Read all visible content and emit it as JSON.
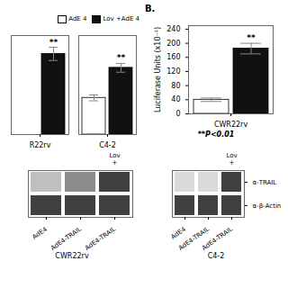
{
  "chart_data": [
    {
      "type": "bar",
      "categories": [
        "R22rv",
        "C4-2"
      ],
      "series": [
        {
          "name": "AdE 4",
          "color": "#ffffff",
          "values": [
            null,
            100
          ],
          "errors": [
            null,
            8
          ]
        },
        {
          "name": "Lov +AdE 4",
          "color": "#111111",
          "values": [
            220,
            182
          ],
          "errors": [
            18,
            12
          ]
        }
      ],
      "ylim": [
        0,
        270
      ],
      "tick_labels": "x",
      "legend": "upper right",
      "annotations": [
        {
          "text": "**",
          "category": "R22rv",
          "series": 1
        },
        {
          "text": "**",
          "category": "C4-2",
          "series": 1
        }
      ]
    },
    {
      "type": "bar",
      "title": "B.",
      "categories": [
        "CWR22rv"
      ],
      "series": [
        {
          "color": "#ffffff",
          "values": [
            40
          ],
          "errors": [
            5
          ]
        },
        {
          "color": "#111111",
          "values": [
            185
          ],
          "errors": [
            15
          ]
        }
      ],
      "ylim": [
        0,
        250
      ],
      "yticks": [
        0,
        40,
        80,
        120,
        160,
        200,
        240
      ],
      "ylabel": "Luciferase Units (x10⁻¹)",
      "annotations": [
        {
          "text": "**",
          "category": "CWR22rv",
          "series": 1
        },
        {
          "text": "**P<0.01"
        }
      ]
    },
    {
      "type": "heatmap",
      "title": "CWR22rv",
      "categories": [
        "AdE4",
        "AdE4-TRAIL",
        "AdE4-TRAIL"
      ],
      "cells": [
        [
          0.25,
          0.45,
          0.75
        ],
        [
          0.75,
          0.75,
          0.75
        ]
      ],
      "zlim": [
        0,
        1
      ],
      "tick_labels": "x",
      "annotations": [
        {
          "text": "Lov\n+",
          "column": 2
        }
      ]
    },
    {
      "type": "heatmap",
      "title": "C4-2",
      "categories": [
        "AdE4",
        "AdE4-TRAIL",
        "AdE4-TRAIL"
      ],
      "y_categories": [
        "α-TRAIL",
        "α-β-Actin"
      ],
      "cells": [
        [
          0.15,
          0.15,
          0.75
        ],
        [
          0.75,
          0.75,
          0.75
        ]
      ],
      "zlim": [
        0,
        1
      ],
      "annotations": [
        {
          "text": "Lov\n+",
          "column": 2
        }
      ]
    }
  ]
}
